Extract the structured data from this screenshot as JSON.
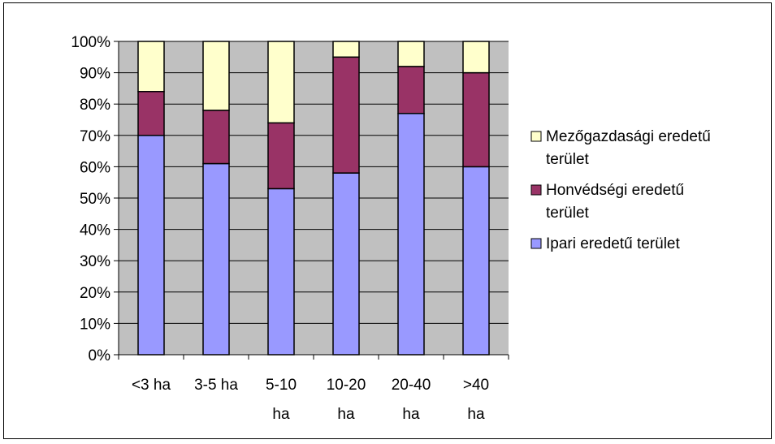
{
  "chart_data": {
    "type": "bar",
    "stacked": true,
    "percent_stacked": true,
    "title": "",
    "xlabel": "",
    "ylabel": "",
    "ylim": [
      0,
      100
    ],
    "yticks": [
      "0%",
      "10%",
      "20%",
      "30%",
      "40%",
      "50%",
      "60%",
      "70%",
      "80%",
      "90%",
      "100%"
    ],
    "categories": [
      [
        "<3 ha"
      ],
      [
        "3-5 ha"
      ],
      [
        "5-10",
        "ha"
      ],
      [
        "10-20",
        "ha"
      ],
      [
        "20-40",
        "ha"
      ],
      [
        ">40",
        "ha"
      ]
    ],
    "series": [
      {
        "name": "Ipari eredetű terület",
        "color": "#9999ff",
        "values": [
          70,
          61,
          53,
          58,
          77,
          60
        ]
      },
      {
        "name": "Honvédségi eredetű terület",
        "color": "#993366",
        "values": [
          14,
          17,
          21,
          37,
          15,
          30
        ]
      },
      {
        "name": "Mezőgazdasági eredetű terület",
        "color": "#ffffcc",
        "values": [
          16,
          22,
          26,
          5,
          8,
          10
        ]
      }
    ],
    "legend": {
      "position": "right",
      "entries": [
        {
          "series": 2,
          "lines": [
            "Mezőgazdasági eredetű",
            "terület"
          ]
        },
        {
          "series": 1,
          "lines": [
            "Honvédségi eredetű",
            "terület"
          ]
        },
        {
          "series": 0,
          "lines": [
            "Ipari eredetű terület"
          ]
        }
      ]
    },
    "plot_background": "#c0c0c0",
    "grid": true
  }
}
